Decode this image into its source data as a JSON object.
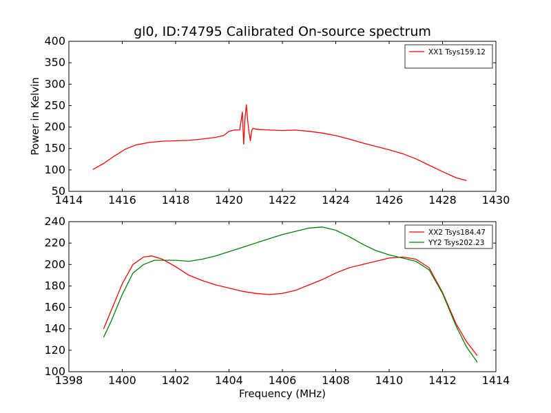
{
  "figure": {
    "title": "gl0, ID:74795 Calibrated On-source spectrum",
    "xlabel": "Frequency (MHz)"
  },
  "chart_data": [
    {
      "type": "line",
      "title": "gl0, ID:74795 Calibrated On-source spectrum",
      "xlabel": "",
      "ylabel": "Power in Kelvin",
      "xlim": [
        1414,
        1430
      ],
      "ylim": [
        50,
        400
      ],
      "xticks": [
        1414,
        1416,
        1418,
        1420,
        1422,
        1424,
        1426,
        1428,
        1430
      ],
      "yticks": [
        50,
        100,
        150,
        200,
        250,
        300,
        350,
        400
      ],
      "legend_position": "top-right",
      "series": [
        {
          "name": "XX1 Tsys159.12",
          "color": "#ff0000",
          "x": [
            1414.9,
            1415.3,
            1415.7,
            1416.1,
            1416.5,
            1417.0,
            1417.5,
            1418.0,
            1418.5,
            1419.0,
            1419.5,
            1419.8,
            1420.0,
            1420.2,
            1420.4,
            1420.5,
            1420.55,
            1420.6,
            1420.65,
            1420.7,
            1420.75,
            1420.8,
            1420.85,
            1420.9,
            1421.0,
            1421.2,
            1421.5,
            1422.0,
            1422.5,
            1423.0,
            1423.5,
            1424.0,
            1424.5,
            1425.0,
            1425.5,
            1426.0,
            1426.5,
            1427.0,
            1427.5,
            1428.0,
            1428.5,
            1428.9
          ],
          "y": [
            101,
            115,
            132,
            148,
            158,
            164,
            167,
            168,
            169,
            172,
            176,
            180,
            190,
            193,
            193,
            235,
            160,
            220,
            252,
            215,
            188,
            168,
            192,
            197,
            195,
            194,
            193,
            192,
            193,
            190,
            186,
            180,
            172,
            163,
            155,
            147,
            138,
            126,
            111,
            96,
            82,
            75
          ]
        }
      ]
    },
    {
      "type": "line",
      "title": "",
      "xlabel": "Frequency (MHz)",
      "ylabel": "",
      "xlim": [
        1398,
        1414
      ],
      "ylim": [
        100,
        240
      ],
      "xticks": [
        1398,
        1400,
        1402,
        1404,
        1406,
        1408,
        1410,
        1412,
        1414
      ],
      "yticks": [
        100,
        120,
        140,
        160,
        180,
        200,
        220,
        240
      ],
      "legend_position": "top-right",
      "series": [
        {
          "name": "XX2 Tsys184.47",
          "color": "#ff0000",
          "x": [
            1399.3,
            1399.6,
            1400.0,
            1400.4,
            1400.8,
            1401.1,
            1401.5,
            1402.0,
            1402.5,
            1403.0,
            1403.5,
            1404.0,
            1404.5,
            1405.0,
            1405.5,
            1406.0,
            1406.5,
            1407.0,
            1407.5,
            1408.0,
            1408.5,
            1409.0,
            1409.5,
            1410.0,
            1410.5,
            1411.0,
            1411.5,
            1412.0,
            1412.5,
            1412.9,
            1413.3
          ],
          "y": [
            140,
            158,
            182,
            200,
            207,
            208,
            205,
            198,
            190,
            185,
            181,
            178,
            175,
            173,
            172,
            173,
            176,
            181,
            186,
            192,
            197,
            200,
            203,
            206,
            207,
            205,
            197,
            174,
            145,
            128,
            115
          ]
        },
        {
          "name": "YY2 Tsys202.23",
          "color": "#008000",
          "x": [
            1399.3,
            1399.6,
            1400.0,
            1400.4,
            1400.8,
            1401.2,
            1401.6,
            1402.0,
            1402.5,
            1403.0,
            1403.5,
            1404.0,
            1404.5,
            1405.0,
            1405.5,
            1406.0,
            1406.5,
            1407.0,
            1407.5,
            1408.0,
            1408.5,
            1409.0,
            1409.5,
            1410.0,
            1410.5,
            1411.0,
            1411.5,
            1412.0,
            1412.5,
            1412.9,
            1413.3
          ],
          "y": [
            132,
            148,
            172,
            192,
            200,
            204,
            204,
            204,
            203,
            205,
            208,
            212,
            216,
            220,
            224,
            228,
            231,
            234,
            235,
            232,
            226,
            219,
            213,
            209,
            206,
            203,
            195,
            173,
            143,
            123,
            109
          ]
        }
      ]
    }
  ]
}
